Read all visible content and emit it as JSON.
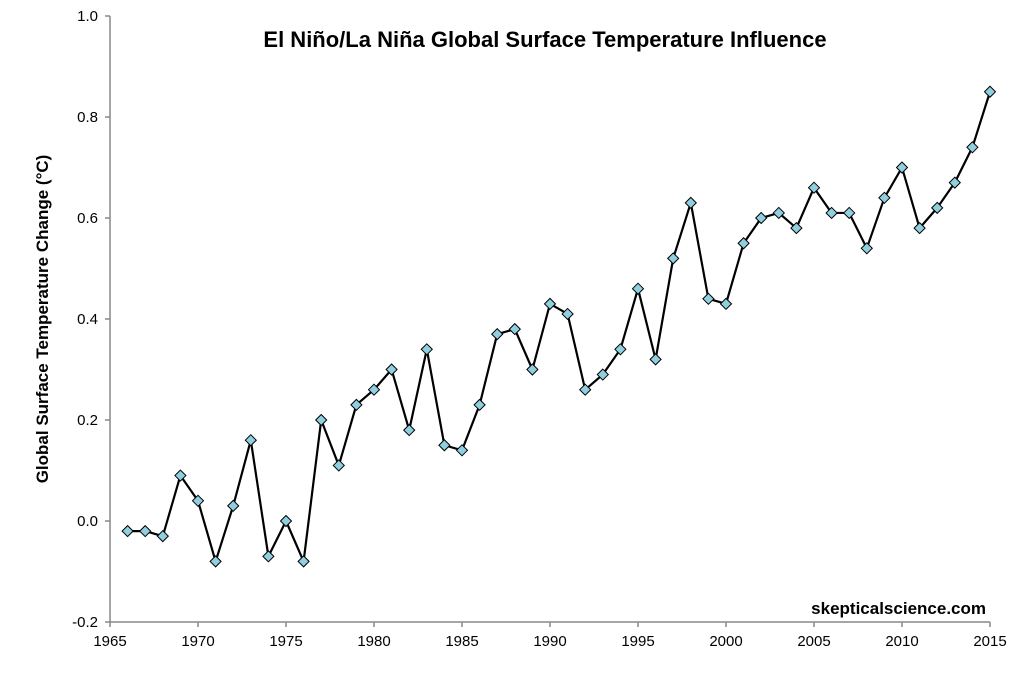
{
  "chart_data": {
    "type": "line",
    "title": "El Niño/La Niña Global Surface Temperature Influence",
    "xlabel": "",
    "ylabel": "Global Surface Temperature Change (°C)",
    "xlim": [
      1965,
      2015
    ],
    "ylim": [
      -0.2,
      1.0
    ],
    "x_ticks": [
      "1965",
      "1970",
      "1975",
      "1980",
      "1985",
      "1990",
      "1995",
      "2000",
      "2005",
      "2010",
      "2015"
    ],
    "y_ticks": [
      "-0.2",
      "0.0",
      "0.2",
      "0.4",
      "0.6",
      "0.8",
      "1.0"
    ],
    "grid": false,
    "legend": "none",
    "marker": "diamond",
    "colors": {
      "line": "#000000",
      "marker_fill": "#8fcfe0",
      "axis": "#888888"
    },
    "x": [
      1966,
      1967,
      1968,
      1969,
      1970,
      1971,
      1972,
      1973,
      1974,
      1975,
      1976,
      1977,
      1978,
      1979,
      1980,
      1981,
      1982,
      1983,
      1984,
      1985,
      1986,
      1987,
      1988,
      1989,
      1990,
      1991,
      1992,
      1993,
      1994,
      1995,
      1996,
      1997,
      1998,
      1999,
      2000,
      2001,
      2002,
      2003,
      2004,
      2005,
      2006,
      2007,
      2008,
      2009,
      2010,
      2011,
      2012,
      2013,
      2014,
      2015
    ],
    "y": [
      -0.02,
      -0.02,
      -0.03,
      0.09,
      0.04,
      -0.08,
      0.03,
      0.16,
      -0.07,
      0.0,
      -0.08,
      0.2,
      0.11,
      0.23,
      0.26,
      0.3,
      0.18,
      0.34,
      0.15,
      0.14,
      0.23,
      0.37,
      0.38,
      0.3,
      0.43,
      0.41,
      0.26,
      0.29,
      0.34,
      0.46,
      0.32,
      0.52,
      0.63,
      0.44,
      0.43,
      0.55,
      0.6,
      0.61,
      0.58,
      0.66,
      0.61,
      0.61,
      0.54,
      0.64,
      0.7,
      0.58,
      0.62,
      0.67,
      0.74,
      0.85
    ]
  },
  "watermark": "skepticalscience.com"
}
